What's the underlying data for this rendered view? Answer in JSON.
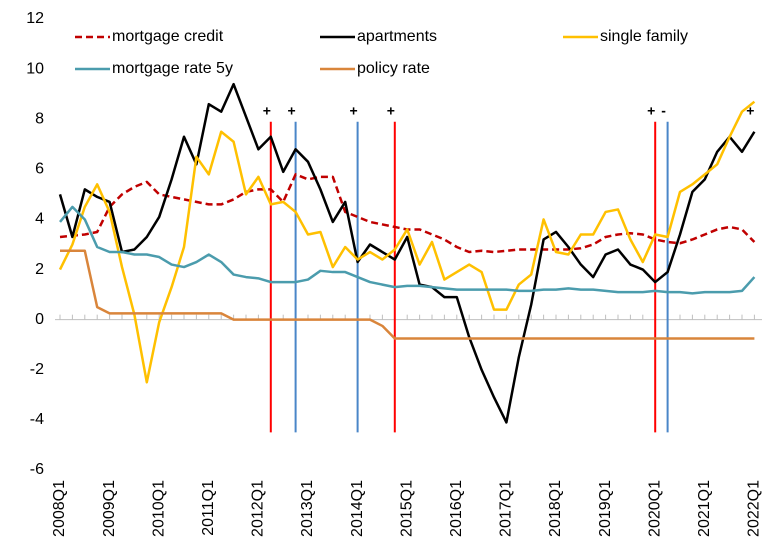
{
  "chart_data": {
    "type": "line",
    "categories": [
      "2008Q1",
      null,
      null,
      null,
      "2009Q1",
      null,
      null,
      null,
      "2010Q1",
      null,
      null,
      null,
      "2011Q1",
      null,
      null,
      null,
      "2012Q1",
      null,
      null,
      null,
      "2013Q1",
      null,
      null,
      null,
      "2014Q1",
      null,
      null,
      null,
      "2015Q1",
      null,
      null,
      null,
      "2016Q1",
      null,
      null,
      null,
      "2017Q1",
      null,
      null,
      null,
      "2018Q1",
      null,
      null,
      null,
      "2019Q1",
      null,
      null,
      null,
      "2020Q1",
      null,
      null,
      null,
      "2021Q1",
      null,
      null,
      null,
      "2022Q1"
    ],
    "series": [
      {
        "name": "mortgage credit",
        "color": "#c00000",
        "line_style": "dashed",
        "values": [
          3.3,
          3.35,
          3.4,
          3.5,
          4.5,
          5.0,
          5.3,
          5.5,
          5.0,
          4.9,
          4.8,
          4.7,
          4.6,
          4.6,
          4.8,
          5.1,
          5.2,
          5.2,
          4.7,
          5.8,
          5.6,
          5.7,
          5.7,
          4.3,
          4.1,
          3.9,
          3.8,
          3.7,
          3.6,
          3.6,
          3.4,
          3.2,
          2.9,
          2.7,
          2.75,
          2.7,
          2.75,
          2.8,
          2.8,
          2.8,
          2.8,
          2.8,
          2.85,
          3.0,
          3.3,
          3.4,
          3.45,
          3.4,
          3.2,
          3.1,
          3.05,
          3.2,
          3.4,
          3.6,
          3.7,
          3.6,
          3.1
        ]
      },
      {
        "name": "apartments",
        "color": "#000000",
        "line_style": "solid",
        "values": [
          5.0,
          3.3,
          5.2,
          4.9,
          4.7,
          2.7,
          2.8,
          3.3,
          4.1,
          5.6,
          7.3,
          6.2,
          8.6,
          8.3,
          9.4,
          8.1,
          6.8,
          7.3,
          5.9,
          6.8,
          6.3,
          5.2,
          3.9,
          4.7,
          2.3,
          3.0,
          2.7,
          2.4,
          3.3,
          1.4,
          1.3,
          0.9,
          0.9,
          -0.7,
          -2.0,
          -3.1,
          -4.1,
          -1.5,
          0.6,
          3.2,
          3.5,
          2.9,
          2.2,
          1.7,
          2.6,
          2.8,
          2.2,
          2.0,
          1.5,
          1.9,
          3.4,
          5.1,
          5.6,
          6.7,
          7.3,
          6.7,
          7.5
        ]
      },
      {
        "name": "single family",
        "color": "#ffc000",
        "line_style": "solid",
        "values": [
          2.0,
          3.0,
          4.5,
          5.4,
          4.3,
          2.1,
          0.2,
          -2.5,
          -0.1,
          1.3,
          2.9,
          6.5,
          5.8,
          7.5,
          7.1,
          5.0,
          5.7,
          4.6,
          4.7,
          4.3,
          3.4,
          3.5,
          2.1,
          2.9,
          2.4,
          2.7,
          2.4,
          2.8,
          3.6,
          2.2,
          3.1,
          1.6,
          1.9,
          2.2,
          1.9,
          0.4,
          0.4,
          1.4,
          1.8,
          4.0,
          2.7,
          2.6,
          3.4,
          3.4,
          4.3,
          4.4,
          3.2,
          2.3,
          3.4,
          3.3,
          5.1,
          5.4,
          5.8,
          6.2,
          7.3,
          8.3,
          8.7
        ]
      },
      {
        "name": "mortgage rate 5y",
        "color": "#4b9cad",
        "line_style": "solid",
        "values": [
          3.9,
          4.5,
          4.0,
          2.9,
          2.7,
          2.7,
          2.6,
          2.6,
          2.5,
          2.2,
          2.1,
          2.3,
          2.6,
          2.3,
          1.8,
          1.7,
          1.65,
          1.5,
          1.5,
          1.5,
          1.6,
          1.95,
          1.9,
          1.9,
          1.7,
          1.5,
          1.4,
          1.3,
          1.35,
          1.35,
          1.3,
          1.25,
          1.2,
          1.2,
          1.2,
          1.2,
          1.2,
          1.15,
          1.15,
          1.2,
          1.2,
          1.25,
          1.2,
          1.2,
          1.15,
          1.1,
          1.1,
          1.1,
          1.15,
          1.1,
          1.1,
          1.05,
          1.1,
          1.1,
          1.1,
          1.15,
          1.7
        ]
      },
      {
        "name": "policy rate",
        "color": "#d9853b",
        "line_style": "solid",
        "values": [
          2.75,
          2.75,
          2.75,
          0.5,
          0.25,
          0.25,
          0.25,
          0.25,
          0.25,
          0.25,
          0.25,
          0.25,
          0.25,
          0.25,
          0,
          0,
          0,
          0,
          0,
          0,
          0,
          0,
          0,
          0,
          0,
          0,
          -0.25,
          -0.75,
          -0.75,
          -0.75,
          -0.75,
          -0.75,
          -0.75,
          -0.75,
          -0.75,
          -0.75,
          -0.75,
          -0.75,
          -0.75,
          -0.75,
          -0.75,
          -0.75,
          -0.75,
          -0.75,
          -0.75,
          -0.75,
          -0.75,
          -0.75,
          -0.75,
          -0.75,
          -0.75,
          -0.75,
          -0.75,
          -0.75,
          -0.75,
          -0.75,
          -0.75
        ]
      }
    ],
    "events": [
      {
        "x": "2012Q2",
        "color": "#ff0000",
        "label": "+"
      },
      {
        "x": "2012Q4",
        "color": "#4a86c8",
        "label": "+"
      },
      {
        "x": "2014Q1",
        "color": "#4a86c8",
        "label": "+"
      },
      {
        "x": "2014Q4",
        "color": "#ff0000",
        "label": "+"
      },
      {
        "x": "2020Q1",
        "color": "#ff0000",
        "label": "+"
      },
      {
        "x": "2020Q2",
        "color": "#4a86c8",
        "label": "-"
      },
      {
        "x": "2022Q1",
        "color": null,
        "label": "+"
      }
    ],
    "event_span": [
      7.9,
      -4.5
    ],
    "ylim": [
      -6,
      12
    ],
    "yticks": [
      -6,
      -4,
      -2,
      0,
      2,
      4,
      6,
      8,
      10,
      12
    ]
  }
}
